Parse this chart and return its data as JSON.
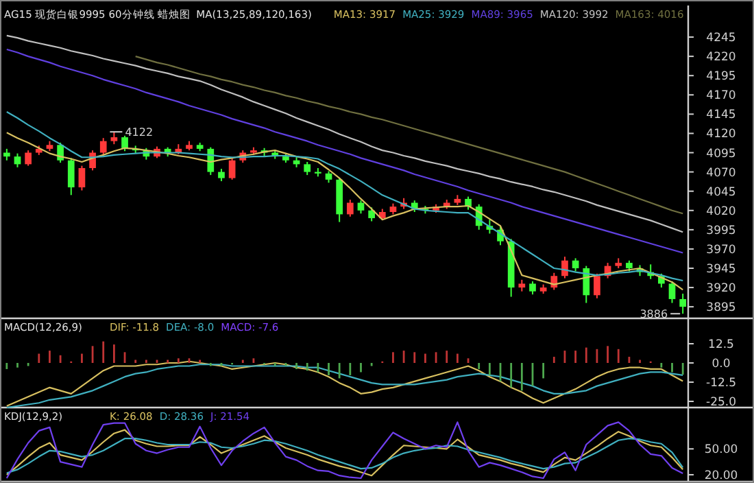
{
  "chart_data": [
    {
      "type": "candlestick",
      "title": "AG15 现货白银9995 60分钟线 蜡烛图",
      "subtitle": "MA(13,25,89,120,163)",
      "categories": [
        null,
        null,
        null,
        null,
        null,
        null,
        null,
        null,
        null,
        null,
        null,
        null,
        null,
        null,
        null,
        null,
        null,
        null,
        null,
        null,
        null,
        null,
        null,
        null,
        null,
        null,
        null,
        null,
        null,
        null,
        null,
        null,
        null,
        null,
        null,
        null,
        null,
        null,
        null,
        null,
        null,
        null,
        null,
        null,
        null,
        null,
        null,
        null,
        null,
        null,
        null,
        null,
        null,
        null,
        null,
        null,
        null,
        null,
        null,
        null,
        null,
        null,
        null,
        null
      ],
      "ohlc": [
        [
          4095,
          4100,
          4085,
          4090
        ],
        [
          4090,
          4094,
          4076,
          4080
        ],
        [
          4080,
          4098,
          4078,
          4095
        ],
        [
          4095,
          4104,
          4092,
          4100
        ],
        [
          4100,
          4110,
          4097,
          4105
        ],
        [
          4105,
          4108,
          4082,
          4085
        ],
        [
          4085,
          4088,
          4040,
          4050
        ],
        [
          4050,
          4078,
          4046,
          4075
        ],
        [
          4075,
          4098,
          4072,
          4095
        ],
        [
          4095,
          4114,
          4092,
          4110
        ],
        [
          4110,
          4122,
          4106,
          4115
        ],
        [
          4115,
          4117,
          4097,
          4100
        ],
        [
          4100,
          4104,
          4094,
          4098
        ],
        [
          4098,
          4101,
          4086,
          4090
        ],
        [
          4090,
          4103,
          4088,
          4100
        ],
        [
          4100,
          4102,
          4090,
          4095
        ],
        [
          4095,
          4106,
          4093,
          4100
        ],
        [
          4100,
          4110,
          4098,
          4105
        ],
        [
          4105,
          4108,
          4097,
          4100
        ],
        [
          4100,
          4102,
          4066,
          4070
        ],
        [
          4070,
          4074,
          4058,
          4062
        ],
        [
          4062,
          4088,
          4060,
          4085
        ],
        [
          4085,
          4098,
          4082,
          4095
        ],
        [
          4095,
          4102,
          4092,
          4098
        ],
        [
          4098,
          4101,
          4091,
          4095
        ],
        [
          4095,
          4098,
          4087,
          4090
        ],
        [
          4090,
          4093,
          4082,
          4085
        ],
        [
          4085,
          4089,
          4076,
          4080
        ],
        [
          4080,
          4083,
          4066,
          4070
        ],
        [
          4070,
          4075,
          4064,
          4068
        ],
        [
          4068,
          4071,
          4056,
          4060
        ],
        [
          4060,
          4062,
          4005,
          4015
        ],
        [
          4015,
          4034,
          4012,
          4030
        ],
        [
          4030,
          4033,
          4016,
          4020
        ],
        [
          4020,
          4024,
          4006,
          4010
        ],
        [
          4010,
          4022,
          4008,
          4018
        ],
        [
          4018,
          4029,
          4015,
          4025
        ],
        [
          4025,
          4036,
          4022,
          4030
        ],
        [
          4030,
          4033,
          4018,
          4022
        ],
        [
          4022,
          4026,
          4016,
          4020
        ],
        [
          4020,
          4028,
          4017,
          4025
        ],
        [
          4025,
          4034,
          4022,
          4030
        ],
        [
          4030,
          4040,
          4027,
          4035
        ],
        [
          4035,
          4038,
          4021,
          4025
        ],
        [
          4025,
          4028,
          3995,
          4000
        ],
        [
          4000,
          4008,
          3990,
          3995
        ],
        [
          3995,
          3999,
          3975,
          3980
        ],
        [
          3980,
          3983,
          3908,
          3920
        ],
        [
          3920,
          3930,
          3915,
          3925
        ],
        [
          3925,
          3928,
          3911,
          3915
        ],
        [
          3915,
          3924,
          3912,
          3920
        ],
        [
          3920,
          3939,
          3917,
          3935
        ],
        [
          3935,
          3960,
          3932,
          3955
        ],
        [
          3955,
          3958,
          3941,
          3945
        ],
        [
          3945,
          3948,
          3900,
          3910
        ],
        [
          3910,
          3938,
          3906,
          3935
        ],
        [
          3935,
          3952,
          3932,
          3948
        ],
        [
          3948,
          3958,
          3945,
          3952
        ],
        [
          3952,
          3955,
          3941,
          3945
        ],
        [
          3945,
          3949,
          3935,
          3940
        ],
        [
          3940,
          3950,
          3931,
          3935
        ],
        [
          3935,
          3938,
          3920,
          3925
        ],
        [
          3925,
          3928,
          3900,
          3905
        ],
        [
          3905,
          3912,
          3886,
          3895
        ]
      ],
      "series": [
        {
          "name": "MA13: 3917",
          "type": "line",
          "color": "#d8c060",
          "values": [
            4121,
            4114,
            4108,
            4101,
            4094,
            4090,
            4087,
            4083,
            4088,
            4092,
            4097,
            4101,
            4100,
            4098,
            4096,
            4094,
            4091,
            4089,
            4086,
            4083,
            4086,
            4088,
            4091,
            4093,
            4096,
            4098,
            4094,
            4090,
            4087,
            4083,
            4073,
            4062,
            4049,
            4035,
            4022,
            4008,
            4013,
            4017,
            4022,
            4023,
            4024,
            4025,
            4025,
            4026,
            4018,
            4009,
            4000,
            3968,
            3936,
            3932,
            3928,
            3924,
            3927,
            3930,
            3933,
            3936,
            3938,
            3941,
            3943,
            3945,
            3939,
            3933,
            3927,
            3917
          ]
        },
        {
          "name": "MA25: 3929",
          "type": "line",
          "color": "#40b0c0",
          "values": [
            4148,
            4140,
            4131,
            4123,
            4114,
            4106,
            4097,
            4089,
            4089,
            4090,
            4092,
            4093,
            4094,
            4095,
            4095,
            4095,
            4095,
            4094,
            4093,
            4092,
            4090,
            4089,
            4089,
            4090,
            4090,
            4091,
            4091,
            4090,
            4089,
            4087,
            4080,
            4074,
            4066,
            4058,
            4049,
            4040,
            4034,
            4028,
            4022,
            4020,
            4019,
            4018,
            4017,
            4017,
            4008,
            3999,
            3990,
            3981,
            3972,
            3963,
            3954,
            3945,
            3943,
            3940,
            3938,
            3936,
            3937,
            3939,
            3940,
            3942,
            3939,
            3936,
            3932,
            3929
          ]
        },
        {
          "name": "MA89: 3965",
          "type": "line",
          "color": "#6040e0",
          "values": [
            4229,
            4225,
            4220,
            4216,
            4212,
            4207,
            4203,
            4199,
            4195,
            4190,
            4186,
            4182,
            4178,
            4173,
            4169,
            4165,
            4161,
            4156,
            4152,
            4148,
            4144,
            4139,
            4135,
            4131,
            4127,
            4122,
            4118,
            4114,
            4110,
            4105,
            4101,
            4097,
            4093,
            4088,
            4084,
            4080,
            4076,
            4072,
            4067,
            4063,
            4059,
            4055,
            4051,
            4046,
            4042,
            4038,
            4034,
            4030,
            4025,
            4021,
            4017,
            4013,
            4009,
            4005,
            4001,
            3997,
            3993,
            3989,
            3985,
            3981,
            3977,
            3973,
            3969,
            3965
          ]
        },
        {
          "name": "MA120: 3992",
          "type": "line",
          "color": "#c0c0c0",
          "values": [
            4247,
            4244,
            4240,
            4237,
            4234,
            4231,
            4227,
            4224,
            4221,
            4217,
            4214,
            4211,
            4208,
            4204,
            4201,
            4198,
            4194,
            4191,
            4188,
            4183,
            4177,
            4172,
            4167,
            4161,
            4156,
            4151,
            4146,
            4140,
            4135,
            4130,
            4125,
            4119,
            4114,
            4109,
            4103,
            4098,
            4095,
            4091,
            4088,
            4084,
            4081,
            4078,
            4074,
            4071,
            4068,
            4064,
            4061,
            4057,
            4054,
            4051,
            4047,
            4044,
            4040,
            4036,
            4032,
            4027,
            4023,
            4019,
            4015,
            4011,
            4007,
            4002,
            3997,
            3992
          ]
        },
        {
          "name": "MA163: 4016",
          "type": "line",
          "color": "#707040",
          "values": [
            null,
            null,
            null,
            null,
            null,
            null,
            null,
            null,
            null,
            null,
            null,
            null,
            4220,
            4216,
            4212,
            4209,
            4205,
            4201,
            4197,
            4194,
            4190,
            4187,
            4183,
            4180,
            4176,
            4173,
            4169,
            4166,
            4162,
            4159,
            4155,
            4152,
            4148,
            4145,
            4141,
            4138,
            4134,
            4130,
            4126,
            4122,
            4118,
            4114,
            4110,
            4106,
            4102,
            4098,
            4094,
            4090,
            4086,
            4082,
            4078,
            4074,
            4070,
            4065,
            4060,
            4055,
            4050,
            4045,
            4040,
            4035,
            4030,
            4025,
            4020,
            4016
          ]
        }
      ],
      "ylim": [
        3880,
        4286
      ],
      "yticks": [
        3895,
        3920,
        3945,
        3970,
        3995,
        4020,
        4045,
        4070,
        4095,
        4120,
        4145,
        4170,
        4195,
        4220,
        4245
      ],
      "annotations": [
        "4122",
        "3886"
      ],
      "legend": "top",
      "tick_labels": "y"
    },
    {
      "type": "line",
      "title": "MACD(12,26,9)",
      "categories": [
        null,
        null,
        null,
        null,
        null,
        null,
        null,
        null,
        null,
        null,
        null,
        null,
        null,
        null,
        null,
        null,
        null,
        null,
        null,
        null,
        null,
        null,
        null,
        null,
        null,
        null,
        null,
        null,
        null,
        null,
        null,
        null,
        null,
        null,
        null,
        null,
        null,
        null,
        null,
        null,
        null,
        null,
        null,
        null,
        null,
        null,
        null,
        null,
        null,
        null,
        null,
        null,
        null,
        null,
        null,
        null,
        null,
        null,
        null,
        null,
        null,
        null,
        null,
        null
      ],
      "series": [
        {
          "name": "DIF: -11.8",
          "type": "line",
          "color": "#d8c060",
          "values": [
            -28,
            -25,
            -22,
            -19,
            -16,
            -18,
            -20,
            -15,
            -10,
            -5,
            -2,
            -2,
            -2,
            -1,
            -1,
            0,
            0,
            1,
            0,
            -1,
            -2,
            -4,
            -3,
            -2,
            -1,
            0,
            -1,
            -3,
            -4,
            -6,
            -9,
            -13,
            -16,
            -20,
            -19,
            -17,
            -16,
            -14,
            -12,
            -10,
            -8,
            -6,
            -4,
            -2,
            -5,
            -9,
            -12,
            -16,
            -19,
            -23,
            -26,
            -23,
            -20,
            -17,
            -13,
            -9,
            -6,
            -4,
            -3,
            -3,
            -4,
            -4,
            -8,
            -11.8
          ]
        },
        {
          "name": "DEA: -8.0",
          "type": "line",
          "color": "#40b0c0",
          "values": [
            -29,
            -28,
            -27,
            -26,
            -24,
            -23,
            -22,
            -20,
            -18,
            -15,
            -12,
            -9,
            -7,
            -6,
            -4,
            -3,
            -2,
            -2,
            -1,
            -1,
            -1,
            -2,
            -2,
            -2,
            -2,
            -2,
            -2,
            -2,
            -3,
            -3,
            -5,
            -7,
            -9,
            -11,
            -13,
            -14,
            -14,
            -14,
            -14,
            -13,
            -12,
            -11,
            -9,
            -8,
            -7,
            -8,
            -9,
            -11,
            -13,
            -15,
            -18,
            -20,
            -20,
            -19,
            -18,
            -15,
            -13,
            -11,
            -9,
            -7,
            -6,
            -6,
            -7,
            -8
          ]
        },
        {
          "name": "MACD: -7.6",
          "type": "bar",
          "color": "#8040ff",
          "colors": [
            "#4ea84e",
            "#4ea84e",
            "#4ea84e",
            "#c03434",
            "#c03434",
            "#c03434",
            "#c03434",
            "#c03434",
            "#c03434",
            "#c03434",
            "#c03434",
            "#c03434",
            "#c03434",
            "#c03434",
            "#c03434",
            "#c03434",
            "#c03434",
            "#c03434",
            "#c03434",
            "#4ea84e",
            "#4ea84e",
            "#4ea84e",
            "#c03434",
            "#c03434",
            "#4ea84e",
            "#4ea84e",
            "#4ea84e",
            "#4ea84e",
            "#4ea84e",
            "#4ea84e",
            "#4ea84e",
            "#4ea84e",
            "#4ea84e",
            "#4ea84e",
            "#4ea84e",
            "#c03434",
            "#c03434",
            "#c03434",
            "#c03434",
            "#c03434",
            "#c03434",
            "#c03434",
            "#c03434",
            "#c03434",
            "#4ea84e",
            "#4ea84e",
            "#4ea84e",
            "#4ea84e",
            "#4ea84e",
            "#4ea84e",
            "#4ea84e",
            "#c03434",
            "#c03434",
            "#c03434",
            "#c03434",
            "#c03434",
            "#c03434",
            "#c03434",
            "#c03434",
            "#c03434",
            "#c03434",
            "#4ea84e",
            "#4ea84e",
            "#4ea84e"
          ],
          "values": [
            -4,
            -3,
            -2,
            6,
            8,
            5,
            1,
            6,
            11,
            14,
            12,
            7,
            2,
            2,
            2,
            2,
            3,
            3,
            2,
            -2,
            -2,
            -1,
            2,
            3,
            -1,
            -2,
            -2,
            -4,
            -5,
            -6,
            -8,
            -10,
            -8,
            -6,
            -2,
            1,
            7,
            8,
            7,
            6,
            7,
            8,
            6,
            3,
            -4,
            -8,
            -12,
            -16,
            -18,
            -15,
            -10,
            4,
            8,
            8,
            10,
            9,
            11,
            9,
            4,
            2,
            1,
            -3,
            -6,
            -7.6
          ]
        }
      ],
      "ylim": [
        -29,
        29
      ],
      "yticks": [
        {
          "value": 12.5,
          "label": "12.5"
        },
        {
          "value": 0,
          "label": "0.0"
        },
        {
          "value": -12.5,
          "label": "-12.5"
        },
        {
          "value": -25,
          "label": "-25.0"
        }
      ],
      "legend": "top",
      "tick_labels": "y"
    },
    {
      "type": "line",
      "title": "KDJ(12,9,2)",
      "categories": [
        null,
        null,
        null,
        null,
        null,
        null,
        null,
        null,
        null,
        null,
        null,
        null,
        null,
        null,
        null,
        null,
        null,
        null,
        null,
        null,
        null,
        null,
        null,
        null,
        null,
        null,
        null,
        null,
        null,
        null,
        null,
        null,
        null,
        null,
        null,
        null,
        null,
        null,
        null,
        null,
        null,
        null,
        null,
        null,
        null,
        null,
        null,
        null,
        null,
        null,
        null,
        null,
        null,
        null,
        null,
        null,
        null,
        null,
        null,
        null,
        null,
        null,
        null,
        null
      ],
      "series": [
        {
          "name": "K: 26.08",
          "type": "line",
          "color": "#d8c060",
          "values": [
            20,
            30,
            41,
            51,
            57,
            43,
            40,
            37,
            47,
            58,
            68,
            72,
            60,
            56,
            53,
            53,
            54,
            54,
            64,
            55,
            45,
            50,
            55,
            60,
            65,
            58,
            51,
            47,
            43,
            38,
            34,
            30,
            27,
            23,
            19,
            31,
            43,
            54,
            53,
            52,
            51,
            50,
            61,
            52,
            43,
            40,
            37,
            33,
            30,
            26,
            23,
            32,
            40,
            37,
            45,
            53,
            62,
            70,
            65,
            59,
            54,
            52,
            40,
            26.08
          ]
        },
        {
          "name": "D: 28.36",
          "type": "line",
          "color": "#40b0c0",
          "values": [
            22,
            26,
            33,
            41,
            48,
            47,
            44,
            41,
            43,
            48,
            55,
            62,
            62,
            60,
            57,
            55,
            55,
            55,
            58,
            57,
            52,
            51,
            53,
            56,
            60,
            59,
            56,
            52,
            48,
            43,
            39,
            35,
            31,
            27,
            28,
            33,
            40,
            45,
            48,
            50,
            51,
            54,
            53,
            49,
            46,
            43,
            40,
            36,
            33,
            30,
            27,
            29,
            33,
            34,
            40,
            46,
            53,
            60,
            62,
            61,
            58,
            56,
            46,
            28.36
          ]
        },
        {
          "name": "J: 21.54",
          "type": "line",
          "color": "#7040f0",
          "values": [
            16,
            38,
            57,
            71,
            75,
            35,
            32,
            29,
            55,
            78,
            80,
            80,
            56,
            48,
            45,
            49,
            52,
            52,
            76,
            51,
            31,
            48,
            59,
            68,
            75,
            57,
            41,
            37,
            30,
            25,
            24,
            19,
            17,
            16,
            37,
            53,
            69,
            62,
            56,
            50,
            54,
            52,
            81,
            48,
            29,
            34,
            31,
            27,
            23,
            18,
            16,
            38,
            46,
            25,
            55,
            66,
            77,
            81,
            71,
            55,
            44,
            42,
            28,
            21.54
          ]
        }
      ],
      "ylim": [
        12,
        98
      ],
      "yticks": [
        {
          "value": 50,
          "label": "50.00"
        },
        {
          "value": 20,
          "label": "20.00"
        }
      ],
      "legend": "top",
      "tick_labels": "y"
    }
  ]
}
